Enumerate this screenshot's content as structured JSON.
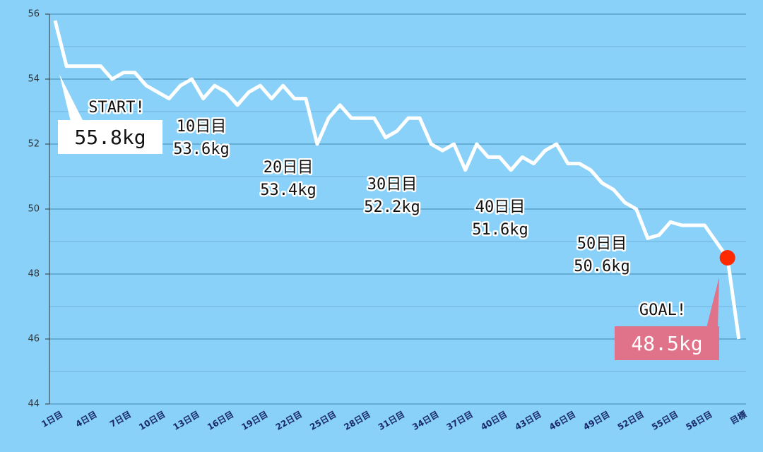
{
  "chart_data": {
    "type": "line",
    "categories": [
      "1日目",
      null,
      null,
      "4日目",
      null,
      null,
      "7日目",
      null,
      null,
      "10日目",
      null,
      null,
      "13日目",
      null,
      null,
      "16日目",
      null,
      null,
      "19日目",
      null,
      null,
      "22日目",
      null,
      null,
      "25日目",
      null,
      null,
      "28日目",
      null,
      null,
      "31日目",
      null,
      null,
      "34日目",
      null,
      null,
      "37日目",
      null,
      null,
      "40日目",
      null,
      null,
      "43日目",
      null,
      null,
      "46日目",
      null,
      null,
      "49日目",
      null,
      null,
      "52日目",
      null,
      null,
      "55日目",
      null,
      null,
      "58日目",
      null,
      null,
      "目標"
    ],
    "series": [
      {
        "color": "#ffffff",
        "marker_color": "#ff2a00",
        "values": [
          55.8,
          54.4,
          54.4,
          54.4,
          54.4,
          54.0,
          54.2,
          54.2,
          53.8,
          53.6,
          53.4,
          53.8,
          54.0,
          53.4,
          53.8,
          53.6,
          53.2,
          53.6,
          53.8,
          53.4,
          53.8,
          53.4,
          53.4,
          52.0,
          52.8,
          53.2,
          52.8,
          52.8,
          52.8,
          52.2,
          52.4,
          52.8,
          52.8,
          52.0,
          51.8,
          52.0,
          51.2,
          52.0,
          51.6,
          51.6,
          51.2,
          51.6,
          51.4,
          51.8,
          52.0,
          51.4,
          51.4,
          51.2,
          50.8,
          50.6,
          50.2,
          50.0,
          49.1,
          49.2,
          49.6,
          49.5,
          49.5,
          49.5,
          49.0,
          48.5,
          46.0
        ]
      }
    ],
    "ylim": [
      44,
      56
    ],
    "yticks": [
      44,
      46,
      48,
      50,
      52,
      54,
      56
    ],
    "yminor": [
      45,
      47,
      49,
      51,
      53,
      55
    ],
    "grid": true,
    "annotations": {
      "start": {
        "label": "START!",
        "value": "55.8kg"
      },
      "milestones": [
        {
          "label": "10日目",
          "value": "53.6kg"
        },
        {
          "label": "20日目",
          "value": "53.4kg"
        },
        {
          "label": "30日目",
          "value": "52.2kg"
        },
        {
          "label": "40日目",
          "value": "51.6kg"
        },
        {
          "label": "50日目",
          "value": "50.6kg"
        }
      ],
      "goal": {
        "label": "GOAL!",
        "value": "48.5kg"
      }
    }
  }
}
